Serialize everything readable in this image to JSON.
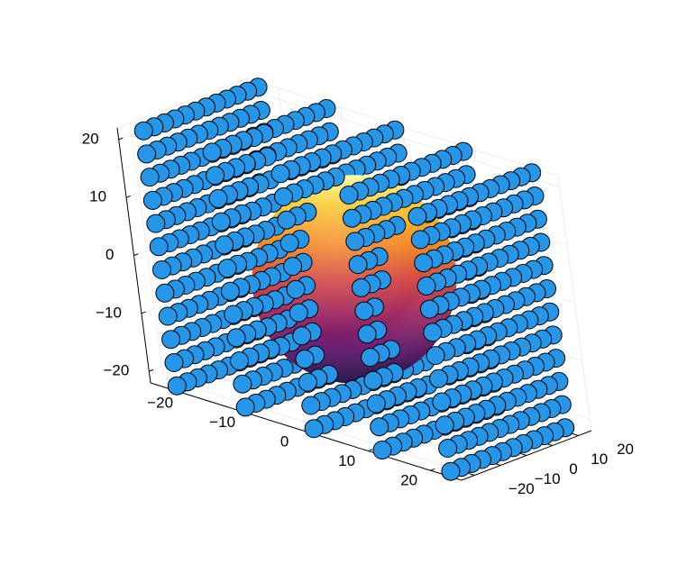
{
  "chart_data": {
    "type": "scatter",
    "plot_kind": "3d-scatter-with-surface",
    "title": "",
    "xlabel": "",
    "ylabel": "",
    "zlabel": "",
    "xlim": [
      -25,
      25
    ],
    "ylim": [
      -25,
      25
    ],
    "zlim": [
      -22,
      22
    ],
    "x_ticks": [
      "−20",
      "−10",
      "0",
      "10",
      "20"
    ],
    "y_ticks": [
      "−20",
      "−10",
      "0",
      "10",
      "20"
    ],
    "z_ticks": [
      "−20",
      "−10",
      "0",
      "10",
      "20"
    ],
    "x_tick_values": [
      -20,
      -10,
      0,
      10,
      20
    ],
    "y_tick_values": [
      -20,
      -10,
      0,
      10,
      20
    ],
    "z_tick_values": [
      -20,
      -10,
      0,
      10,
      20
    ],
    "grid": true,
    "legend": "none",
    "series": [
      {
        "kind": "scatter-grid",
        "description_marker": "circle",
        "color": "#2596e8",
        "edge_color": "#000000",
        "x_planes": [
          -22,
          -11,
          0,
          11,
          22
        ],
        "y_range": [
          -22,
          22
        ],
        "z_range": [
          -22,
          22
        ],
        "y_step": 4,
        "z_step": 4,
        "hidden_inside_sphere": true
      },
      {
        "kind": "surface",
        "shape": "sphere",
        "center": [
          0,
          0,
          0
        ],
        "radius": 18,
        "colormap": "inferno"
      }
    ]
  }
}
